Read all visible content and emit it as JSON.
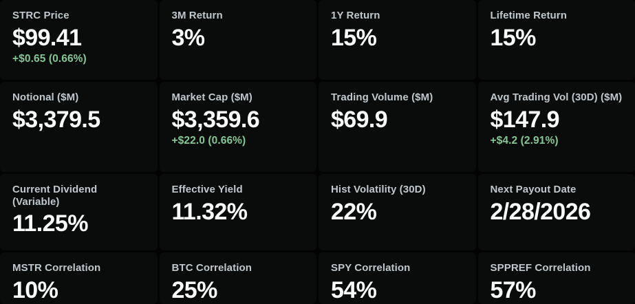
{
  "theme": {
    "page_bg": "#020302",
    "tile_bg": "#0a0c0b",
    "label_color": "#bfc8cc",
    "value_color": "#fafbfb",
    "positive_color": "#84c794"
  },
  "metrics": [
    {
      "id": "strc-price",
      "label": "STRC Price",
      "value": "$99.41",
      "change": "+$0.65 (0.66%)"
    },
    {
      "id": "3m-return",
      "label": "3M Return",
      "value": "3%",
      "change": ""
    },
    {
      "id": "1y-return",
      "label": "1Y Return",
      "value": "15%",
      "change": ""
    },
    {
      "id": "lifetime-return",
      "label": "Lifetime Return",
      "value": "15%",
      "change": ""
    },
    {
      "id": "notional",
      "label": "Notional ($M)",
      "value": "$3,379.5",
      "change": ""
    },
    {
      "id": "market-cap",
      "label": "Market Cap ($M)",
      "value": "$3,359.6",
      "change": "+$22.0 (0.66%)"
    },
    {
      "id": "trading-volume",
      "label": "Trading Volume ($M)",
      "value": "$69.9",
      "change": ""
    },
    {
      "id": "avg-trading-vol-30d",
      "label": "Avg Trading Vol (30D) ($M)",
      "value": "$147.9",
      "change": "+$4.2 (2.91%)"
    },
    {
      "id": "current-dividend",
      "label": "Current Dividend (Variable)",
      "value": "11.25%",
      "change": ""
    },
    {
      "id": "effective-yield",
      "label": "Effective Yield",
      "value": "11.32%",
      "change": ""
    },
    {
      "id": "hist-volatility-30d",
      "label": "Hist Volatility (30D)",
      "value": "22%",
      "change": ""
    },
    {
      "id": "next-payout-date",
      "label": "Next Payout Date",
      "value": "2/28/2026",
      "change": ""
    },
    {
      "id": "mstr-correlation",
      "label": "MSTR Correlation",
      "value": "10%",
      "change": ""
    },
    {
      "id": "btc-correlation",
      "label": "BTC Correlation",
      "value": "25%",
      "change": ""
    },
    {
      "id": "spy-correlation",
      "label": "SPY Correlation",
      "value": "54%",
      "change": ""
    },
    {
      "id": "sppref-correlation",
      "label": "SPPREF Correlation",
      "value": "57%",
      "change": ""
    }
  ]
}
